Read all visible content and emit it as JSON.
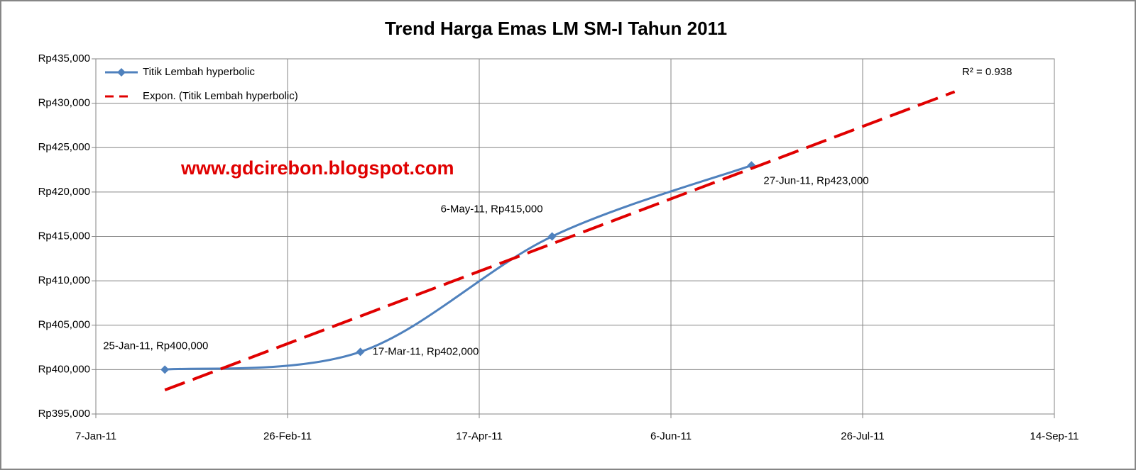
{
  "chart_data": {
    "type": "line",
    "title": "Trend Harga Emas LM SM-I Tahun 2011",
    "series": [
      {
        "name": "Titik Lembah hyperbolic",
        "color": "#4f81bd",
        "marker": "diamond",
        "smooth": true,
        "x": [
          "2011-01-25",
          "2011-03-17",
          "2011-05-06",
          "2011-06-27"
        ],
        "values": [
          400000,
          402000,
          415000,
          423000
        ],
        "value_labels": [
          "25-Jan-11,  Rp400,000",
          "17-Mar-11,  Rp402,000",
          "6-May-11,  Rp415,000",
          "27-Jun-11,  Rp423,000"
        ]
      },
      {
        "name": "Expon. (Titik Lembah hyperbolic)",
        "color": "#e00000",
        "dashed": true,
        "x": [
          "2011-01-25",
          "2011-08-19"
        ],
        "values": [
          397700,
          431300
        ]
      }
    ],
    "annotations": [
      "R² = 0.938",
      "www.gdcirebon.blogspot.com"
    ],
    "xlim": [
      "2011-01-07",
      "2011-09-14"
    ],
    "xticks": [
      {
        "value": "2011-01-07",
        "label": "7-Jan-11"
      },
      {
        "value": "2011-02-26",
        "label": "26-Feb-11"
      },
      {
        "value": "2011-04-17",
        "label": "17-Apr-11"
      },
      {
        "value": "2011-06-06",
        "label": "6-Jun-11"
      },
      {
        "value": "2011-07-26",
        "label": "26-Jul-11"
      },
      {
        "value": "2011-09-14",
        "label": "14-Sep-11"
      }
    ],
    "ylim": [
      395000,
      435000
    ],
    "yticks": [
      {
        "value": 395000,
        "label": "Rp395,000"
      },
      {
        "value": 400000,
        "label": "Rp400,000"
      },
      {
        "value": 405000,
        "label": "Rp405,000"
      },
      {
        "value": 410000,
        "label": "Rp410,000"
      },
      {
        "value": 415000,
        "label": "Rp415,000"
      },
      {
        "value": 420000,
        "label": "Rp420,000"
      },
      {
        "value": 425000,
        "label": "Rp425,000"
      },
      {
        "value": 430000,
        "label": "Rp430,000"
      },
      {
        "value": 435000,
        "label": "Rp435,000"
      }
    ],
    "grid": true,
    "legend": "upper left"
  }
}
